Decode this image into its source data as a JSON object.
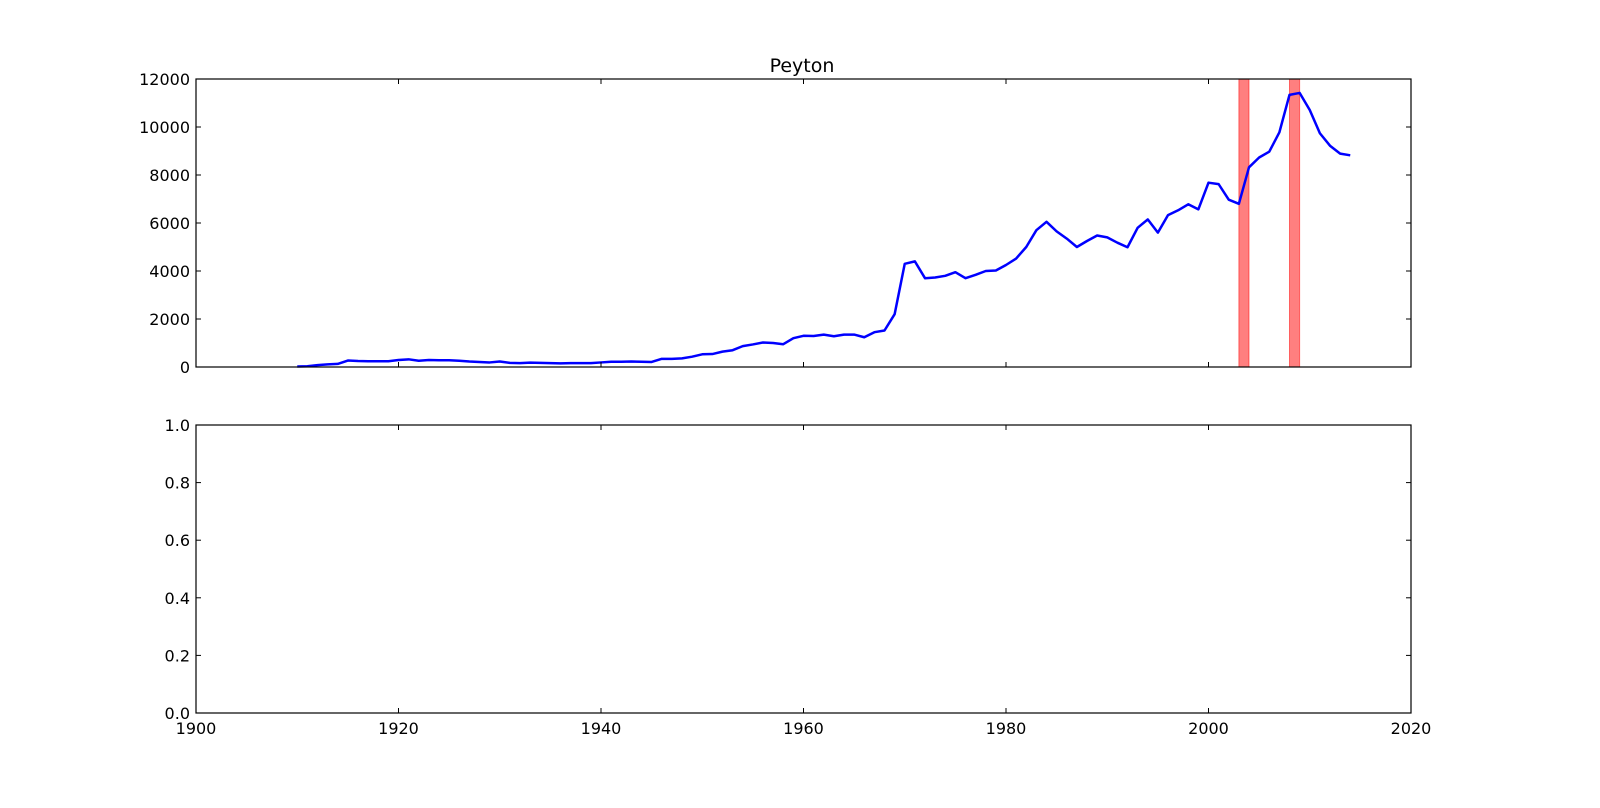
{
  "chart_data": [
    {
      "type": "line",
      "title": "Peyton",
      "xlabel": "",
      "ylabel": "",
      "xlim": [
        1900,
        2020
      ],
      "ylim": [
        0,
        12000
      ],
      "y_ticks": [
        0,
        2000,
        4000,
        6000,
        8000,
        10000,
        12000
      ],
      "x_ticks": [
        1900,
        1920,
        1940,
        1960,
        1980,
        2000,
        2020
      ],
      "x_tick_labels_visible": false,
      "grid": false,
      "colors": {
        "line": "#0000ff",
        "band": "#ff0000"
      },
      "shaded_spans": [
        {
          "x_start": 2003,
          "x_end": 2004
        },
        {
          "x_start": 2008,
          "x_end": 2009
        }
      ],
      "series": [
        {
          "x": [
            1910,
            1911,
            1912,
            1913,
            1914,
            1915,
            1916,
            1917,
            1918,
            1919,
            1920,
            1921,
            1922,
            1923,
            1924,
            1925,
            1926,
            1927,
            1928,
            1929,
            1930,
            1931,
            1932,
            1933,
            1934,
            1935,
            1936,
            1937,
            1938,
            1939,
            1940,
            1941,
            1942,
            1943,
            1944,
            1945,
            1946,
            1947,
            1948,
            1949,
            1950,
            1951,
            1952,
            1953,
            1954,
            1955,
            1956,
            1957,
            1958,
            1959,
            1960,
            1961,
            1962,
            1963,
            1964,
            1965,
            1966,
            1967,
            1968,
            1969,
            1970,
            1971,
            1972,
            1973,
            1974,
            1975,
            1976,
            1977,
            1978,
            1979,
            1980,
            1981,
            1982,
            1983,
            1984,
            1985,
            1986,
            1987,
            1988,
            1989,
            1990,
            1991,
            1992,
            1993,
            1994,
            1995,
            1996,
            1997,
            1998,
            1999,
            2000,
            2001,
            2002,
            2003,
            2004,
            2005,
            2006,
            2007,
            2008,
            2009,
            2010,
            2011,
            2012,
            2013,
            2014
          ],
          "y": [
            20,
            30,
            80,
            110,
            130,
            270,
            250,
            240,
            240,
            240,
            290,
            320,
            260,
            290,
            280,
            280,
            260,
            230,
            210,
            190,
            230,
            170,
            160,
            180,
            170,
            160,
            150,
            160,
            160,
            160,
            190,
            220,
            220,
            230,
            220,
            210,
            340,
            340,
            360,
            430,
            530,
            540,
            640,
            700,
            870,
            940,
            1020,
            1000,
            950,
            1200,
            1300,
            1290,
            1350,
            1280,
            1350,
            1350,
            1240,
            1450,
            1520,
            2200,
            4300,
            4400,
            3700,
            3730,
            3800,
            3950,
            3700,
            3840,
            4000,
            4020,
            4250,
            4520,
            5000,
            5700,
            6050,
            5650,
            5350,
            5000,
            5250,
            5480,
            5400,
            5180,
            4990,
            5800,
            6150,
            5600,
            6330,
            6530,
            6780,
            6570,
            7680,
            7620,
            6970,
            6800,
            8320,
            8730,
            8970,
            9780,
            11340,
            11420,
            10710,
            9740,
            9220,
            8890,
            8820
          ]
        }
      ]
    },
    {
      "type": "line",
      "title": "",
      "xlabel": "",
      "ylabel": "",
      "xlim": [
        1900,
        2020
      ],
      "ylim": [
        0.0,
        1.0
      ],
      "x_ticks": [
        1900,
        1920,
        1940,
        1960,
        1980,
        2000,
        2020
      ],
      "x_tick_labels": [
        "1900",
        "1920",
        "1940",
        "1960",
        "1980",
        "2000",
        "2020"
      ],
      "y_ticks": [
        0.0,
        0.2,
        0.4,
        0.6,
        0.8,
        1.0
      ],
      "y_tick_labels": [
        "0.0",
        "0.2",
        "0.4",
        "0.6",
        "0.8",
        "1.0"
      ],
      "grid": false,
      "series": []
    }
  ]
}
